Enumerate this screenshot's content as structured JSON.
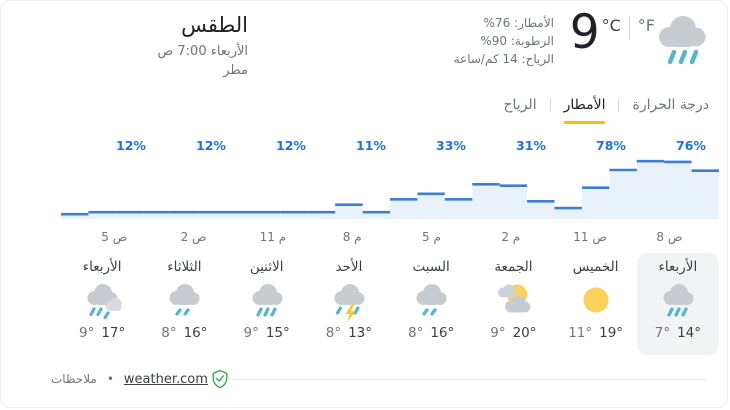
{
  "header": {
    "title": "الطقس",
    "datetime": "الأربعاء 7:00 ص",
    "condition": "مطر",
    "temp_value": "9",
    "unit_c": "°C",
    "unit_f": "°F",
    "hero_icon": "rain-cloud-icon",
    "stats": [
      {
        "text": "الأمطار: 76%"
      },
      {
        "text": "الرطوبة: 90%"
      },
      {
        "text": "الرياح: 14 كم/ساعة"
      }
    ]
  },
  "tabs": [
    {
      "label": "درجة الحرارة",
      "active": false
    },
    {
      "label": "الأمطار",
      "active": true
    },
    {
      "label": "الرياح",
      "active": false
    }
  ],
  "chart_data": {
    "type": "area",
    "rtl": true,
    "points": [
      {
        "time": "8 ص",
        "precip_percent": 76
      },
      {
        "time": "11 ص",
        "precip_percent": 78
      },
      {
        "time": "2 م",
        "precip_percent": 31
      },
      {
        "time": "5 م",
        "precip_percent": 33
      },
      {
        "time": "8 م",
        "precip_percent": 11
      },
      {
        "time": "11 م",
        "precip_percent": 12
      },
      {
        "time": "2 ص",
        "precip_percent": 12
      },
      {
        "time": "5 ص",
        "precip_percent": 12
      }
    ],
    "hourly_estimated_percent": [
      71,
      84,
      85,
      72,
      46,
      16,
      26,
      49,
      51,
      29,
      37,
      29,
      10,
      21,
      10,
      10,
      10,
      10,
      10,
      10,
      10,
      10,
      10,
      7
    ],
    "ylim": [
      0,
      100
    ],
    "line_color": "#3e7fd6",
    "fill_color": "#e9f1fb",
    "percent_label_color": "#1a73e8"
  },
  "days": [
    {
      "name": "الأربعاء",
      "icon": "rain-heavy",
      "low": "7°",
      "high": "14°",
      "today": true
    },
    {
      "name": "الخميس",
      "icon": "sunny",
      "low": "11°",
      "high": "19°",
      "today": false
    },
    {
      "name": "الجمعة",
      "icon": "partly-cloudy",
      "low": "9°",
      "high": "20°",
      "today": false
    },
    {
      "name": "السبت",
      "icon": "rain-light",
      "low": "8°",
      "high": "16°",
      "today": false
    },
    {
      "name": "الأحد",
      "icon": "thunderstorm",
      "low": "8°",
      "high": "13°",
      "today": false
    },
    {
      "name": "الاثنين",
      "icon": "rain-heavy",
      "low": "9°",
      "high": "15°",
      "today": false
    },
    {
      "name": "الثلاثاء",
      "icon": "rain-light",
      "low": "8°",
      "high": "16°",
      "today": false
    },
    {
      "name": "الأربعاء",
      "icon": "rain-cloudy",
      "low": "9°",
      "high": "17°",
      "today": false
    }
  ],
  "footer": {
    "feedback": "ملاحظات",
    "dot": "•",
    "source": "weather.com",
    "badge_icon": "shield-check-icon"
  },
  "accent": {
    "tab_underline": "#fbbc04",
    "today_highlight": "#f1f3f4",
    "sun_yellow": "#fbd15b",
    "rain_teal": "#55b6ca",
    "cloud_gray": "#c7ccd1"
  }
}
